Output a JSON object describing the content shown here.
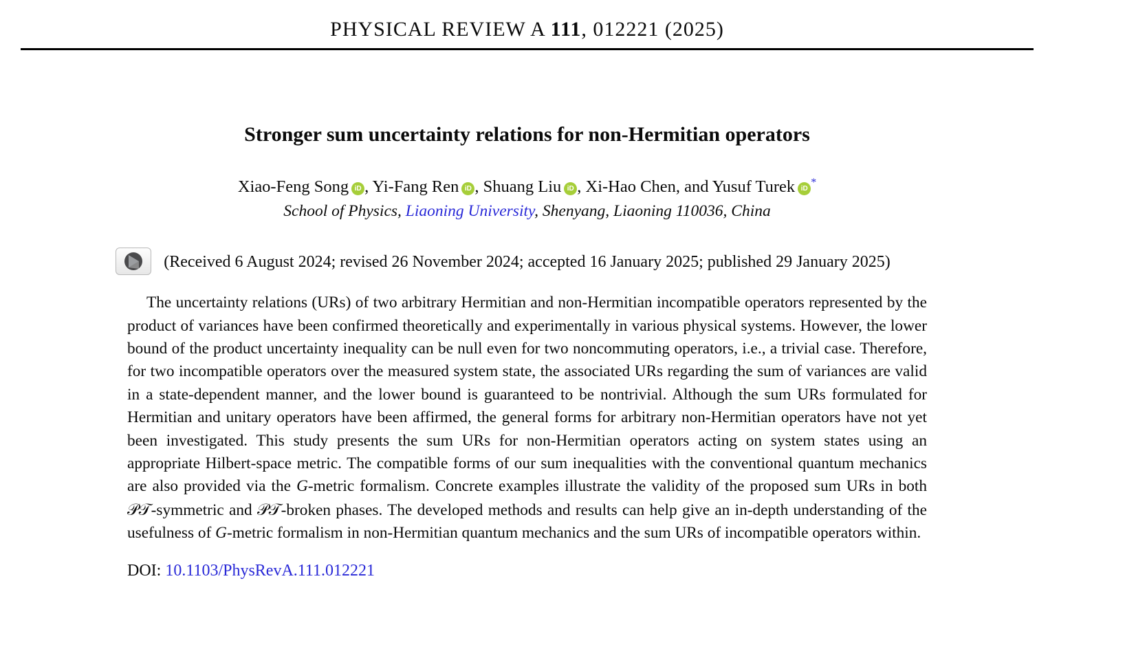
{
  "page": {
    "background": "#ffffff",
    "link_color": "#2828d7",
    "orcid_green": "#a6ce39",
    "icons": {
      "orcid": "orcid-id-icon",
      "crossmark": "crossmark-check-for-updates-icon"
    }
  },
  "header": {
    "journal": "PHYSICAL REVIEW A ",
    "volume": "111",
    "issue_info": ", 012221 (2025)"
  },
  "article": {
    "title": "Stronger sum uncertainty relations for non-Hermitian operators",
    "authors": [
      {
        "name": "Xiao-Feng Song",
        "orcid": true,
        "sep": ", "
      },
      {
        "name": "Yi-Fang Ren",
        "orcid": true,
        "sep": ", "
      },
      {
        "name": "Shuang Liu",
        "orcid": true,
        "sep": ", "
      },
      {
        "name": "Xi-Hao Chen",
        "orcid": false,
        "sep": ", and "
      },
      {
        "name": "Yusuf Turek",
        "orcid": true,
        "marker": "*"
      }
    ],
    "affiliation": {
      "prefix": "School of Physics, ",
      "institution": "Liaoning University",
      "suffix": ", Shenyang, Liaoning 110036, China"
    },
    "history": "(Received 6 August 2024; revised 26 November 2024; accepted 16 January 2025; published 29 January 2025)",
    "abstract_segments": [
      {
        "text": "The uncertainty relations (URs) of two arbitrary Hermitian and non-Hermitian incompatible operators represented by the product of variances have been confirmed theoretically and experimentally in various physical systems. However, the lower bound of the product uncertainty inequality can be null even for two noncommuting operators, i.e., a trivial case. Therefore, for two incompatible operators over the measured system state, the associated URs regarding the sum of variances are valid in a state-dependent manner, and the lower bound is guaranteed to be nontrivial. Although the sum URs formulated for Hermitian and unitary operators have been affirmed, the general forms for arbitrary non-Hermitian operators have not yet been investigated. This study presents the sum URs for non-Hermitian operators acting on system states using an appropriate Hilbert-space metric. The compatible forms of our sum inequalities with the conventional quantum mechanics are also provided via the "
      },
      {
        "text": "G",
        "style": "italic"
      },
      {
        "text": "-metric formalism. Concrete examples illustrate the validity of the proposed sum URs in both "
      },
      {
        "text": "𝒫𝒯",
        "style": "script"
      },
      {
        "text": "-symmetric and "
      },
      {
        "text": "𝒫𝒯",
        "style": "script"
      },
      {
        "text": "-broken phases. The developed methods and results can help give an in-depth understanding of the usefulness of "
      },
      {
        "text": "G",
        "style": "italic"
      },
      {
        "text": "-metric formalism in non-Hermitian quantum mechanics and the sum URs of incompatible operators within."
      }
    ],
    "doi": {
      "label": "DOI: ",
      "link": "10.1103/PhysRevA.111.012221"
    }
  }
}
